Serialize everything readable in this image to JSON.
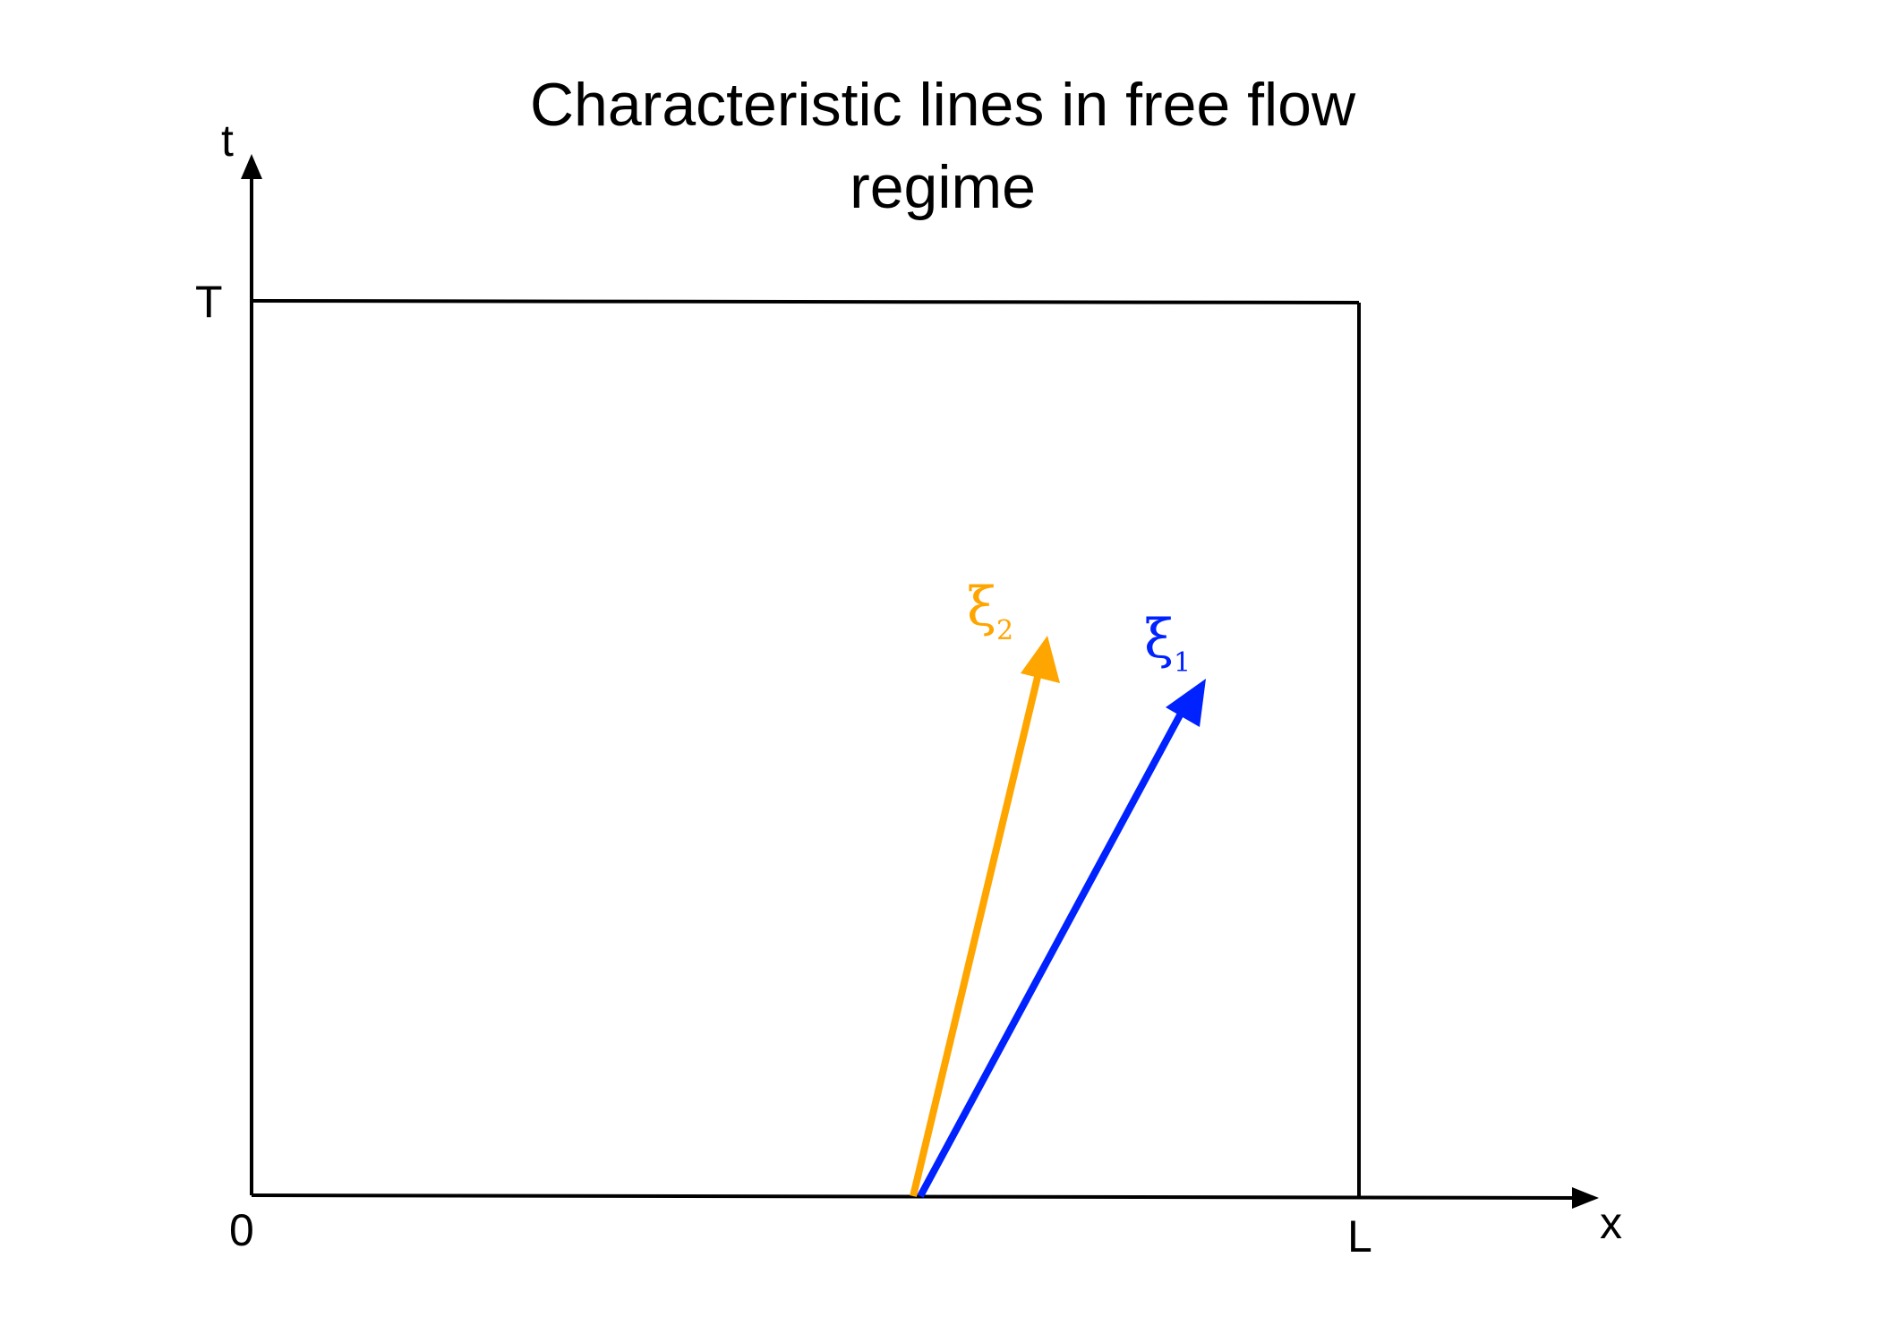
{
  "title": {
    "line1": "Characteristic lines in free flow",
    "line2": "regime"
  },
  "axes": {
    "t_label": "t",
    "x_label": "x",
    "T_label": "T",
    "L_label": "L",
    "origin_label": "0"
  },
  "characteristics": [
    {
      "symbol": "ξ",
      "subscript": "2",
      "color": "#FFA500"
    },
    {
      "symbol": "ξ",
      "subscript": "1",
      "color": "#0022FF"
    }
  ],
  "colors": {
    "axis": "#000000",
    "xi2": "#FFA500",
    "xi1": "#0022FF"
  }
}
